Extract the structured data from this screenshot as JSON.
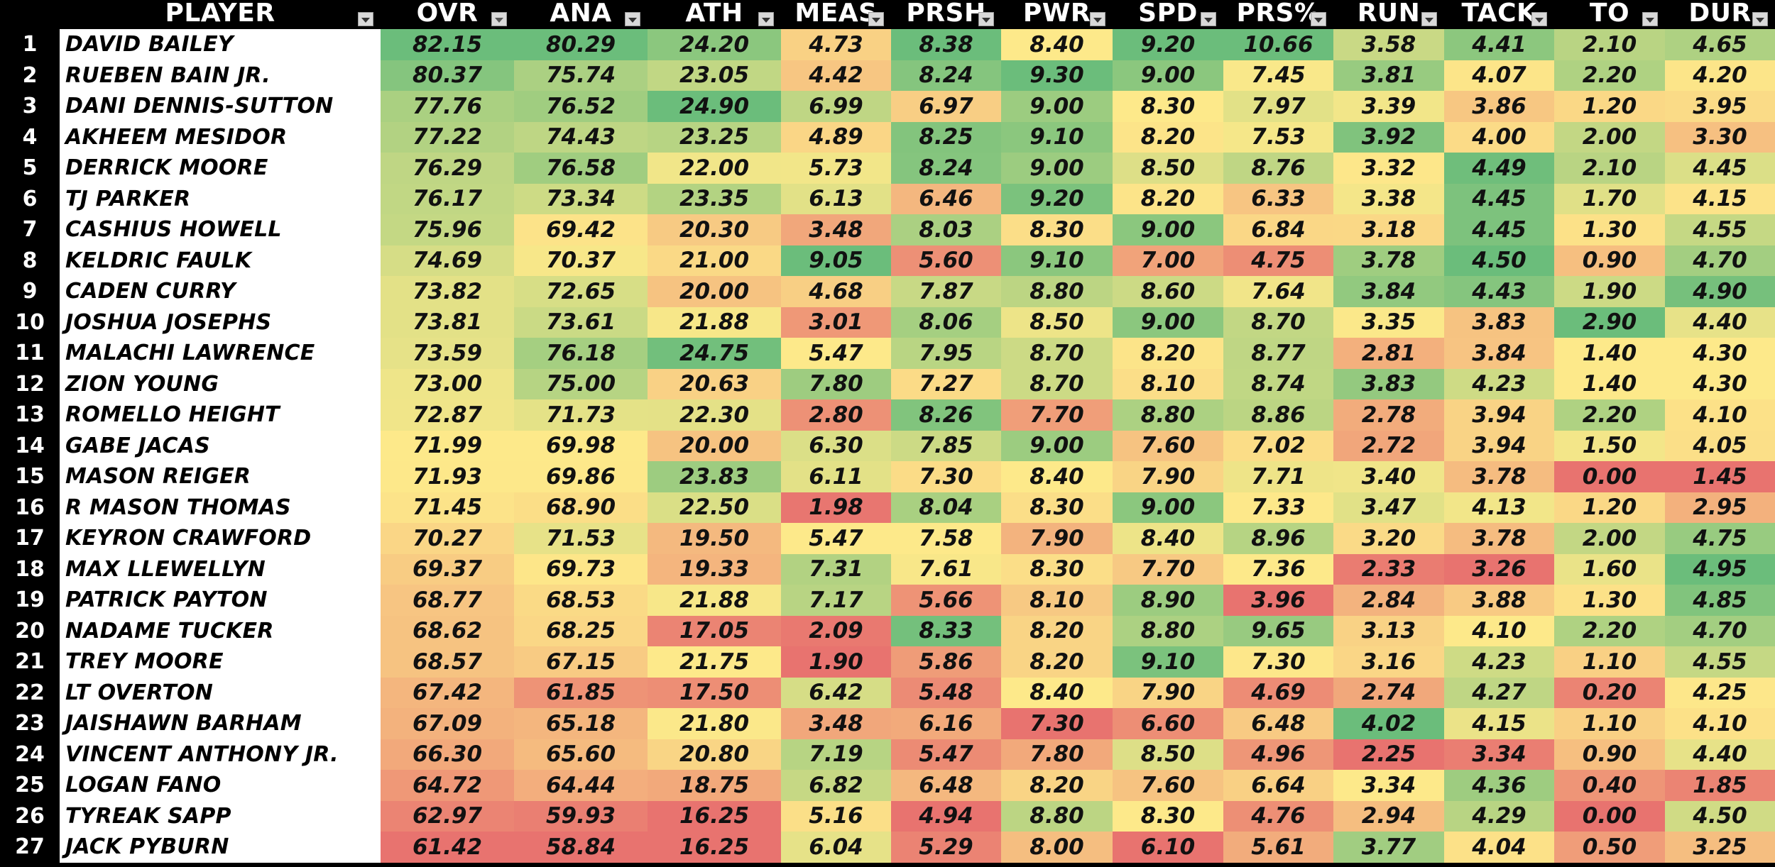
{
  "headers": [
    "PLAYER",
    "OVR",
    "ANA",
    "ATH",
    "MEAS",
    "PRSH",
    "PWR",
    "SPD",
    "PRS%",
    "RUN",
    "TACK",
    "TO",
    "DUR"
  ],
  "players": [
    {
      "rank": "1",
      "name": "DAVID BAILEY",
      "vals": [
        "82.15",
        "80.29",
        "24.20",
        "4.73",
        "8.38",
        "8.40",
        "9.20",
        "10.66",
        "3.58",
        "4.41",
        "2.10",
        "4.65"
      ]
    },
    {
      "rank": "2",
      "name": "RUEBEN BAIN JR.",
      "vals": [
        "80.37",
        "75.74",
        "23.05",
        "4.42",
        "8.24",
        "9.30",
        "9.00",
        "7.45",
        "3.81",
        "4.07",
        "2.20",
        "4.20"
      ]
    },
    {
      "rank": "3",
      "name": "DANI DENNIS-SUTTON",
      "vals": [
        "77.76",
        "76.52",
        "24.90",
        "6.99",
        "6.97",
        "9.00",
        "8.30",
        "7.97",
        "3.39",
        "3.86",
        "1.20",
        "3.95"
      ]
    },
    {
      "rank": "4",
      "name": "AKHEEM MESIDOR",
      "vals": [
        "77.22",
        "74.43",
        "23.25",
        "4.89",
        "8.25",
        "9.10",
        "8.20",
        "7.53",
        "3.92",
        "4.00",
        "2.00",
        "3.30"
      ]
    },
    {
      "rank": "5",
      "name": "DERRICK MOORE",
      "vals": [
        "76.29",
        "76.58",
        "22.00",
        "5.73",
        "8.24",
        "9.00",
        "8.50",
        "8.76",
        "3.32",
        "4.49",
        "2.10",
        "4.45"
      ]
    },
    {
      "rank": "6",
      "name": "TJ PARKER",
      "vals": [
        "76.17",
        "73.34",
        "23.35",
        "6.13",
        "6.46",
        "9.20",
        "8.20",
        "6.33",
        "3.38",
        "4.45",
        "1.70",
        "4.15"
      ]
    },
    {
      "rank": "7",
      "name": "CASHIUS HOWELL",
      "vals": [
        "75.96",
        "69.42",
        "20.30",
        "3.48",
        "8.03",
        "8.30",
        "9.00",
        "6.84",
        "3.18",
        "4.45",
        "1.30",
        "4.55"
      ]
    },
    {
      "rank": "8",
      "name": "KELDRIC FAULK",
      "vals": [
        "74.69",
        "70.37",
        "21.00",
        "9.05",
        "5.60",
        "9.10",
        "7.00",
        "4.75",
        "3.78",
        "4.50",
        "0.90",
        "4.70"
      ]
    },
    {
      "rank": "9",
      "name": "CADEN CURRY",
      "vals": [
        "73.82",
        "72.65",
        "20.00",
        "4.68",
        "7.87",
        "8.80",
        "8.60",
        "7.64",
        "3.84",
        "4.43",
        "1.90",
        "4.90"
      ]
    },
    {
      "rank": "10",
      "name": "JOSHUA JOSEPHS",
      "vals": [
        "73.81",
        "73.61",
        "21.88",
        "3.01",
        "8.06",
        "8.50",
        "9.00",
        "8.70",
        "3.35",
        "3.83",
        "2.90",
        "4.40"
      ]
    },
    {
      "rank": "11",
      "name": "MALACHI LAWRENCE",
      "vals": [
        "73.59",
        "76.18",
        "24.75",
        "5.47",
        "7.95",
        "8.70",
        "8.20",
        "8.77",
        "2.81",
        "3.84",
        "1.40",
        "4.30"
      ]
    },
    {
      "rank": "12",
      "name": "ZION YOUNG",
      "vals": [
        "73.00",
        "75.00",
        "20.63",
        "7.80",
        "7.27",
        "8.70",
        "8.10",
        "8.74",
        "3.83",
        "4.23",
        "1.40",
        "4.30"
      ]
    },
    {
      "rank": "13",
      "name": "ROMELLO HEIGHT",
      "vals": [
        "72.87",
        "71.73",
        "22.30",
        "2.80",
        "8.26",
        "7.70",
        "8.80",
        "8.86",
        "2.78",
        "3.94",
        "2.20",
        "4.10"
      ]
    },
    {
      "rank": "14",
      "name": "GABE JACAS",
      "vals": [
        "71.99",
        "69.98",
        "20.00",
        "6.30",
        "7.85",
        "9.00",
        "7.60",
        "7.02",
        "2.72",
        "3.94",
        "1.50",
        "4.05"
      ]
    },
    {
      "rank": "15",
      "name": "MASON REIGER",
      "vals": [
        "71.93",
        "69.86",
        "23.83",
        "6.11",
        "7.30",
        "8.40",
        "7.90",
        "7.71",
        "3.40",
        "3.78",
        "0.00",
        "1.45"
      ]
    },
    {
      "rank": "16",
      "name": "R MASON THOMAS",
      "vals": [
        "71.45",
        "68.90",
        "22.50",
        "1.98",
        "8.04",
        "8.30",
        "9.00",
        "7.33",
        "3.47",
        "4.13",
        "1.20",
        "2.95"
      ]
    },
    {
      "rank": "17",
      "name": "KEYRON CRAWFORD",
      "vals": [
        "70.27",
        "71.53",
        "19.50",
        "5.47",
        "7.58",
        "7.90",
        "8.40",
        "8.96",
        "3.20",
        "3.78",
        "2.00",
        "4.75"
      ]
    },
    {
      "rank": "18",
      "name": "MAX LLEWELLYN",
      "vals": [
        "69.37",
        "69.73",
        "19.33",
        "7.31",
        "7.61",
        "8.30",
        "7.70",
        "7.36",
        "2.33",
        "3.26",
        "1.60",
        "4.95"
      ]
    },
    {
      "rank": "19",
      "name": "PATRICK PAYTON",
      "vals": [
        "68.77",
        "68.53",
        "21.88",
        "7.17",
        "5.66",
        "8.10",
        "8.90",
        "3.96",
        "2.84",
        "3.88",
        "1.30",
        "4.85"
      ]
    },
    {
      "rank": "20",
      "name": "NADAME TUCKER",
      "vals": [
        "68.62",
        "68.25",
        "17.05",
        "2.09",
        "8.33",
        "8.20",
        "8.80",
        "9.65",
        "3.13",
        "4.10",
        "2.20",
        "4.70"
      ]
    },
    {
      "rank": "21",
      "name": "TREY MOORE",
      "vals": [
        "68.57",
        "67.15",
        "21.75",
        "1.90",
        "5.86",
        "8.20",
        "9.10",
        "7.30",
        "3.16",
        "4.23",
        "1.10",
        "4.55"
      ]
    },
    {
      "rank": "22",
      "name": "LT OVERTON",
      "vals": [
        "67.42",
        "61.85",
        "17.50",
        "6.42",
        "5.48",
        "8.40",
        "7.90",
        "4.69",
        "2.74",
        "4.27",
        "0.20",
        "4.25"
      ]
    },
    {
      "rank": "23",
      "name": "JAISHAWN BARHAM",
      "vals": [
        "67.09",
        "65.18",
        "21.80",
        "3.48",
        "6.16",
        "7.30",
        "6.60",
        "6.48",
        "4.02",
        "4.15",
        "1.10",
        "4.10"
      ]
    },
    {
      "rank": "24",
      "name": "VINCENT ANTHONY JR.",
      "vals": [
        "66.30",
        "65.60",
        "20.80",
        "7.19",
        "5.47",
        "7.80",
        "8.50",
        "4.96",
        "2.25",
        "3.34",
        "0.90",
        "4.40"
      ]
    },
    {
      "rank": "25",
      "name": "LOGAN FANO",
      "vals": [
        "64.72",
        "64.44",
        "18.75",
        "6.82",
        "6.48",
        "8.20",
        "7.60",
        "6.64",
        "3.34",
        "4.36",
        "0.40",
        "1.85"
      ]
    },
    {
      "rank": "26",
      "name": "TYREAK SAPP",
      "vals": [
        "62.97",
        "59.93",
        "16.25",
        "5.16",
        "4.94",
        "8.80",
        "8.30",
        "4.76",
        "2.94",
        "4.29",
        "0.00",
        "4.50"
      ]
    },
    {
      "rank": "27",
      "name": "JACK PYBURN",
      "vals": [
        "61.42",
        "58.84",
        "16.25",
        "6.04",
        "5.29",
        "8.00",
        "6.10",
        "5.61",
        "3.77",
        "4.04",
        "0.50",
        "3.25"
      ]
    }
  ],
  "colors": {
    "red": "#e8736f",
    "yellow": "#fde98a",
    "green": "#6bbd7b",
    "header_bg": "#000000",
    "header_text": "#ffffff"
  },
  "icons": {
    "filter": "filter-dropdown-icon",
    "sorted": "sort-desc-filter-icon"
  }
}
